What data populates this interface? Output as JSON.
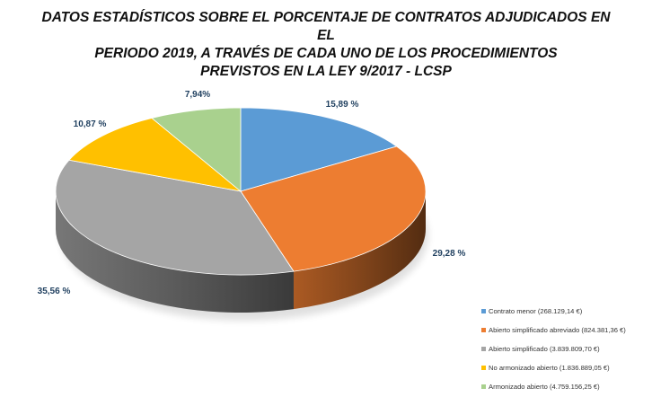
{
  "chart_data": {
    "type": "pie",
    "title_lines": [
      "DATOS ESTADÍSTICOS SOBRE EL PORCENTAJE DE CONTRATOS ADJUDICADOS EN EL",
      "PERIODO 2019, A TRAVÉS DE CADA UNO DE LOS PROCEDIMIENTOS",
      "PREVISTOS EN LA LEY 9/2017 - LCSP"
    ],
    "three_d": true,
    "legend_position": "bottom-right",
    "slices": [
      {
        "category": "Contrato menor (268.129,14 €)",
        "value": 15.89,
        "label": "15,89 %",
        "color": "#5b9bd5"
      },
      {
        "category": "Abierto simplificado abreviado (824.381,36 €)",
        "value": 29.28,
        "label": "29,28 %",
        "color": "#ed7d31"
      },
      {
        "category": "Abierto simplificado (3.839.809,70 €)",
        "value": 35.56,
        "label": "35,56 %",
        "color": "#a5a5a5"
      },
      {
        "category": "No armonizado abierto (1.836.889,05 €)",
        "value": 10.87,
        "label": "10,87 %",
        "color": "#ffc000"
      },
      {
        "category": "Armonizado abierto (4.759.156,25 €)",
        "value": 7.94,
        "label": "7,94%",
        "color": "#a9d18e"
      }
    ]
  }
}
